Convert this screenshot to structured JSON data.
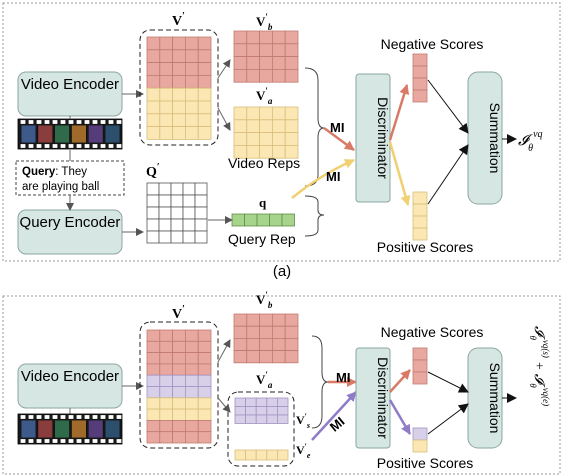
{
  "colors": {
    "box_fill": "#d6e6e3",
    "box_stroke": "#8aa7a1",
    "cell_red": "#e8a8a0",
    "cell_red_stroke": "#c07a70",
    "cell_yellow": "#fbe7b4",
    "cell_yellow_stroke": "#d9bf7a",
    "cell_white": "#ffffff",
    "cell_purple": "#d8cfe8",
    "cell_purple_stroke": "#a294c3",
    "cell_green": "#a7d48c",
    "arrow_red": "#d97a67",
    "arrow_yellow": "#f4dc86",
    "arrow_purple": "#8f7cc9",
    "arrow_gray": "#555555",
    "frame_dash": "#9a9a9a"
  },
  "panel_a": {
    "video_encoder": "Video Encoder",
    "query_encoder": "Query Encoder",
    "query_label_bold": "Query",
    "query_text": ": They are playing ball",
    "v_prime": "V′",
    "q_prime": "Q′",
    "vb_label": "V′b",
    "va_label": "V′a",
    "video_reps": "Video Reps",
    "q_label": "q",
    "query_rep": "Query Rep",
    "mi_top": "MI",
    "mi_bottom": "MI",
    "discriminator": "Discriminator",
    "negative_scores": "Negative Scores",
    "positive_scores": "Positive Scores",
    "summation": "Summation",
    "output": "𝓘θ^vq",
    "caption": "(a)"
  },
  "panel_b": {
    "video_encoder": "Video Encoder",
    "v_prime": "V′",
    "vb_label": "V′b",
    "va_label": "V′a",
    "vs_label": "V′s",
    "ve_label": "V′e",
    "mi_top": "MI",
    "mi_bottom": "MI",
    "discriminator": "Discriminator",
    "negative_scores": "Negative Scores",
    "positive_scores": "Positive Scores",
    "summation": "Summation",
    "output_1": "𝓘θ^vq(s)",
    "plus": "+",
    "output_2": "𝓘θ^vq(e)"
  },
  "icons": {
    "film_strip": "film-strip-icon"
  }
}
